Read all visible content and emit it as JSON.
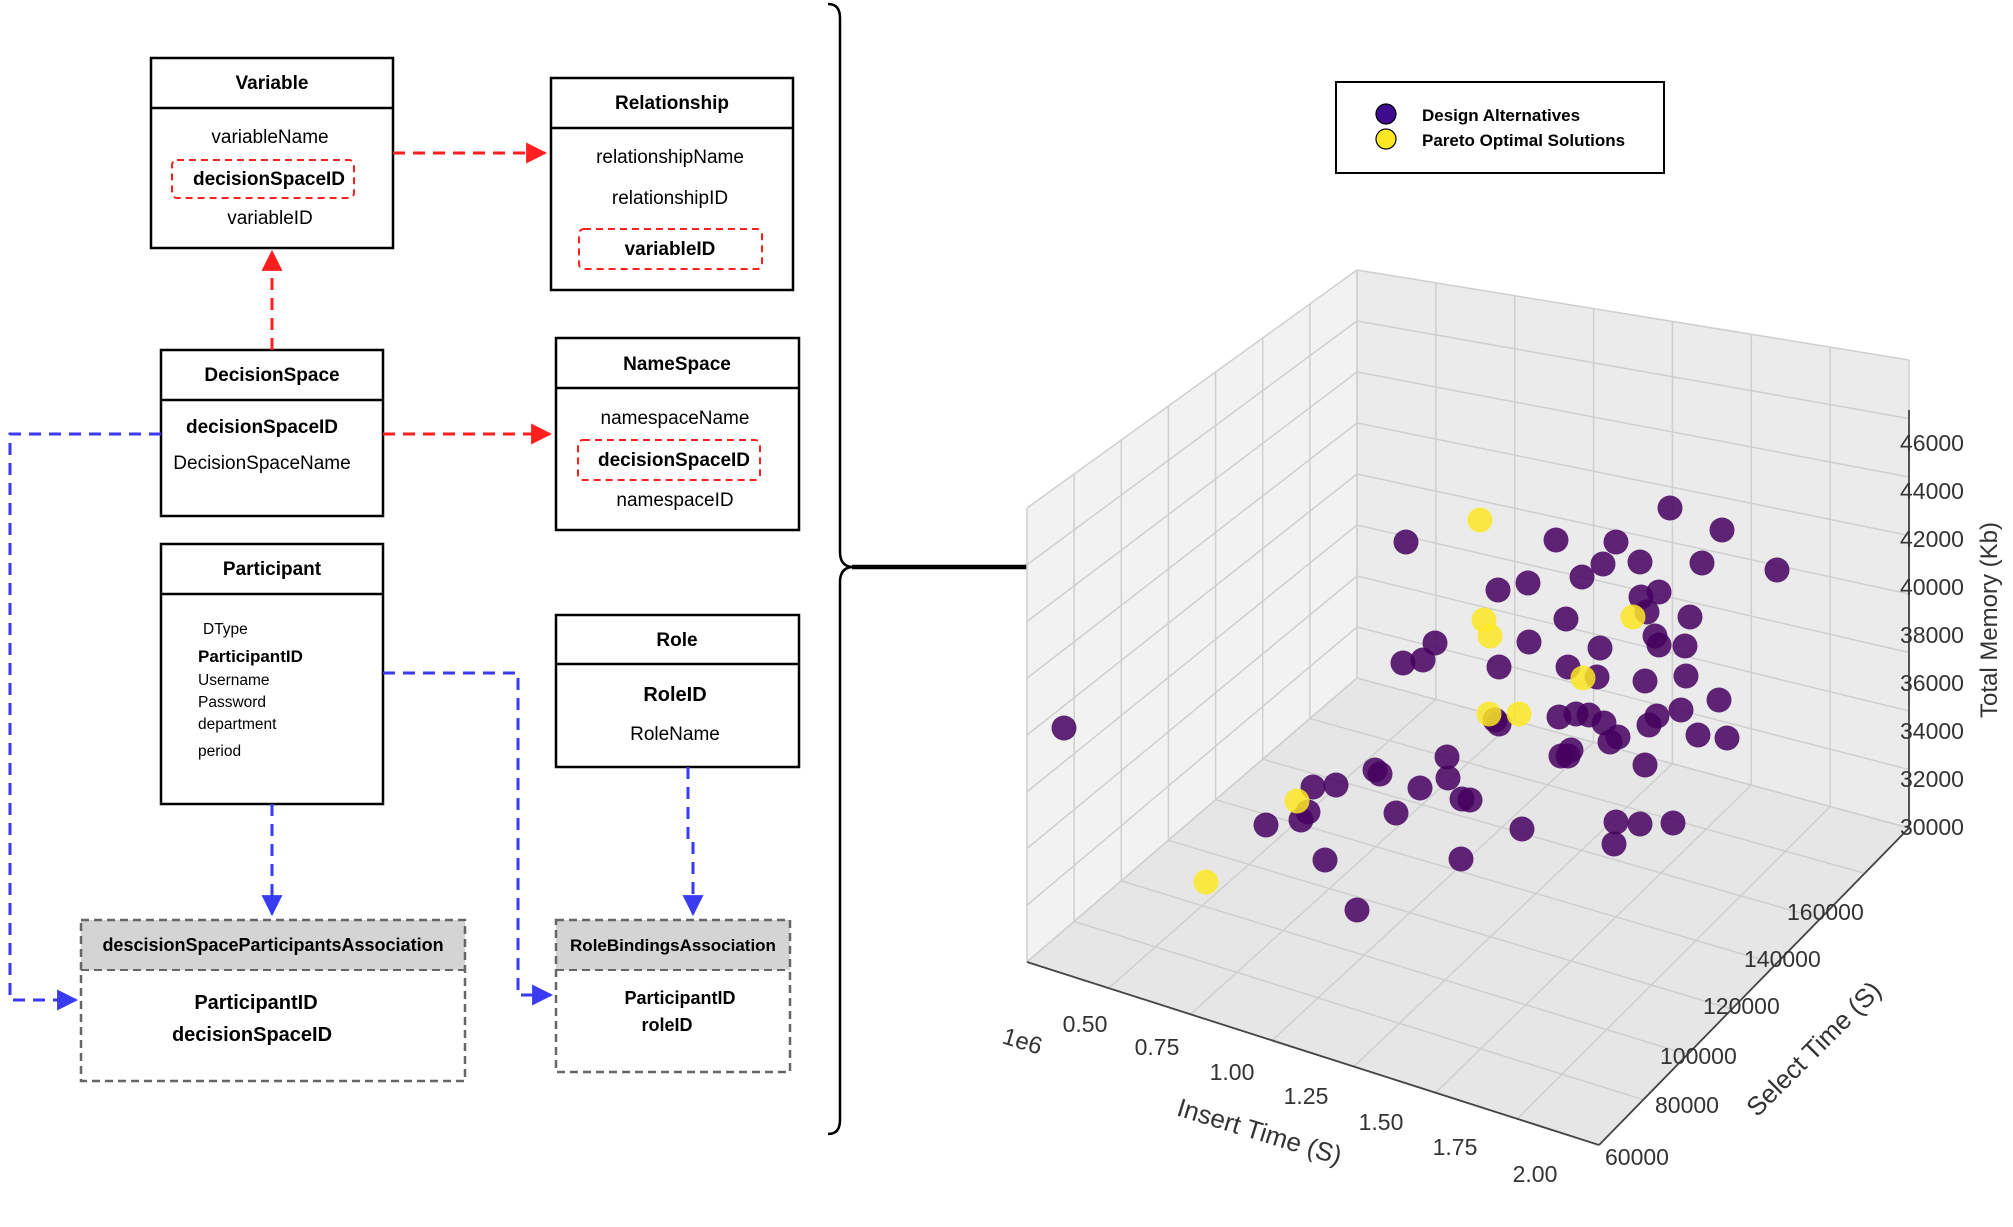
{
  "er_diagram": {
    "entities": [
      {
        "id": "variable",
        "title": "Variable",
        "fields": [
          "variableName",
          "decisionSpaceID",
          "variableID"
        ]
      },
      {
        "id": "relationship",
        "title": "Relationship",
        "fields": [
          "relationshipName",
          "relationshipID",
          "variableID"
        ]
      },
      {
        "id": "decisionspace",
        "title": "DecisionSpace",
        "fields": [
          "decisionSpaceID",
          "DecisionSpaceName"
        ]
      },
      {
        "id": "namespace",
        "title": "NameSpace",
        "fields": [
          "namespaceName",
          "decisionSpaceID",
          "namespaceID"
        ]
      },
      {
        "id": "participant",
        "title": "Participant",
        "fields": [
          "DType",
          "ParticipantID",
          "Username",
          "Password",
          "department",
          "period"
        ]
      },
      {
        "id": "role",
        "title": "Role",
        "fields": [
          "RoleID",
          "RoleName"
        ]
      },
      {
        "id": "dspa",
        "title": "descisionSpaceParticipantsAssociation",
        "fields": [
          "ParticipantID",
          "decisionSpaceID"
        ]
      },
      {
        "id": "rba",
        "title": "RoleBindingsAssociation",
        "fields": [
          "ParticipantID",
          "roleID"
        ]
      }
    ],
    "colors": {
      "foreign_key": "#ff1f1f",
      "association": "#3a3af0",
      "association_header": "#d4d4d4"
    }
  },
  "legend": {
    "design": "Design Alternatives",
    "pareto": "Pareto Optimal Solutions"
  },
  "chart_data": {
    "type": "scatter3d",
    "xlabel": "Insert Time (S)",
    "ylabel": "Select Time (S)",
    "zlabel": "Total Memory (Kb)",
    "x_offset_label": "1e6",
    "x_ticks": [
      "0.50",
      "0.75",
      "1.00",
      "1.25",
      "1.50",
      "1.75",
      "2.00"
    ],
    "y_ticks": [
      "60000",
      "80000",
      "100000",
      "120000",
      "140000",
      "160000"
    ],
    "z_ticks": [
      "30000",
      "32000",
      "34000",
      "36000",
      "38000",
      "40000",
      "42000",
      "44000",
      "46000"
    ],
    "colors": {
      "design": "#45005f",
      "pareto": "#fde725"
    },
    "grid": true,
    "legend_position": "top-right"
  }
}
